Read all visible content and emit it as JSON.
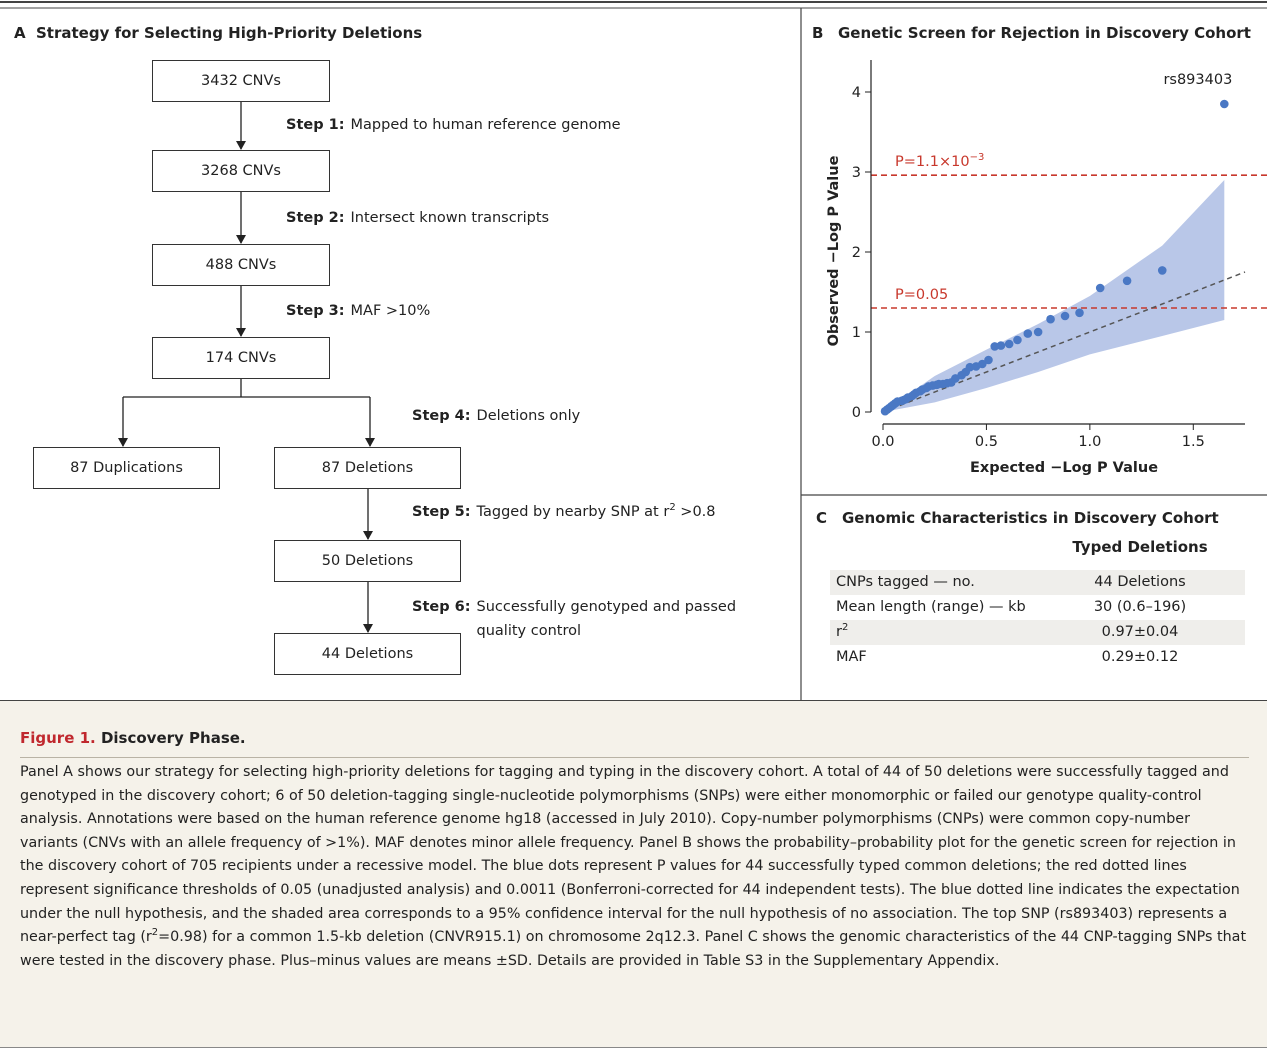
{
  "panel_a": {
    "label": "A",
    "title": "Strategy for Selecting High-Priority Deletions",
    "nodes": [
      "3432 CNVs",
      "3268 CNVs",
      "488 CNVs",
      "174 CNVs",
      "87 Duplications",
      "87 Deletions",
      "50 Deletions",
      "44 Deletions"
    ],
    "steps": [
      {
        "label": "Step 1:",
        "text": "Mapped to human reference genome"
      },
      {
        "label": "Step 2:",
        "text": "Intersect known transcripts"
      },
      {
        "label": "Step 3:",
        "text": "MAF >10%"
      },
      {
        "label": "Step 4:",
        "text": "Deletions only"
      },
      {
        "label": "Step 5:",
        "text": "Tagged by nearby SNP at r",
        "text_sup": "2",
        "text_after": " >0.8"
      },
      {
        "label": "Step 6:",
        "text": "Successfully genotyped and passed quality control"
      }
    ]
  },
  "chart_data": {
    "type": "scatter",
    "label": "B",
    "title": "Genetic Screen for Rejection in Discovery Cohort",
    "x_label": "Expected −Log P Value",
    "y_label": "Observed −Log P Value",
    "x": [
      1.65,
      1.35,
      1.18,
      1.05,
      0.95,
      0.88,
      0.81,
      0.75,
      0.7,
      0.65,
      0.61,
      0.57,
      0.54,
      0.51,
      0.48,
      0.45,
      0.42,
      0.4,
      0.38,
      0.35,
      0.33,
      0.31,
      0.29,
      0.27,
      0.26,
      0.24,
      0.22,
      0.21,
      0.19,
      0.18,
      0.16,
      0.15,
      0.14,
      0.12,
      0.11,
      0.1,
      0.09,
      0.07,
      0.06,
      0.05,
      0.04,
      0.03,
      0.02,
      0.01
    ],
    "values": [
      3.85,
      1.77,
      1.64,
      1.55,
      1.24,
      1.2,
      1.16,
      1.0,
      0.98,
      0.9,
      0.85,
      0.83,
      0.82,
      0.65,
      0.6,
      0.57,
      0.56,
      0.5,
      0.46,
      0.42,
      0.37,
      0.36,
      0.35,
      0.35,
      0.34,
      0.33,
      0.32,
      0.3,
      0.28,
      0.26,
      0.24,
      0.22,
      0.2,
      0.18,
      0.16,
      0.15,
      0.14,
      0.13,
      0.11,
      0.09,
      0.07,
      0.05,
      0.03,
      0.01
    ],
    "color": "#4a78c4",
    "xlim": [
      0,
      1.75
    ],
    "ylim": [
      0,
      4.4
    ],
    "xticks": [
      {
        "value": 0,
        "label": "0.0"
      },
      0.5,
      {
        "value": 1,
        "label": "1.0"
      },
      1.5
    ],
    "yticks": [
      0,
      1,
      2,
      3,
      4
    ],
    "band_x": [
      0,
      0.25,
      0.5,
      0.75,
      1.0,
      1.35,
      1.65
    ],
    "band_upper": [
      0,
      0.45,
      0.78,
      1.1,
      1.45,
      2.08,
      2.9
    ],
    "band_lower": [
      0,
      0.12,
      0.3,
      0.5,
      0.72,
      0.95,
      1.15
    ],
    "band_color": "#b9c7e8",
    "null_line": {
      "x": [
        0,
        1.75
      ],
      "y": [
        0,
        1.75
      ]
    },
    "threshold_color": "#c8382c",
    "thresholds": [
      {
        "value": 2.96,
        "label": "P=1.1×10",
        "label_sup": "−3"
      },
      {
        "value": 1.3,
        "label": "P=0.05"
      }
    ],
    "annotation": "rs893403"
  },
  "panel_c": {
    "label": "C",
    "title": "Genomic Characteristics in Discovery Cohort",
    "column_header": "Typed Deletions",
    "rows": [
      {
        "label": "CNPs tagged — no.",
        "value": "44 Deletions"
      },
      {
        "label": "Mean length (range) — kb",
        "value": "30 (0.6–196)"
      },
      {
        "label": "r",
        "label_sup": "2",
        "value": "0.97±0.04"
      },
      {
        "label": "MAF",
        "value": "0.29±0.12"
      }
    ]
  },
  "caption": {
    "figure_label": "Figure 1.",
    "title": "Discovery Phase.",
    "body": [
      {
        "text": "Panel A shows our strategy for selecting high-priority deletions for tagging and typing in the discovery cohort. A total of 44 of 50 deletions were successfully tagged and genotyped in the discovery cohort; 6 of 50 deletion-tagging single-nucleotide polymorphisms (SNPs) were either monomorphic or failed our genotype quality-control analysis. Annotations were based on the human reference genome hg18 (accessed in July 2010). Copy-number polymorphisms (CNPs) were common copy-number variants (CNVs with an allele frequency of >1%). MAF denotes minor allele frequency. Panel B shows the probability–probability plot for the genetic screen for rejection in the discovery cohort of 705 recipients under a recessive model. The blue dots represent P values for 44 successfully typed common deletions; the red dotted lines represent significance thresholds of 0.05 (unadjusted analysis) and 0.0011 (Bonferroni-corrected for 44 independent tests). The blue dotted line indicates the expectation under the null hypothesis, and the shaded area corresponds to a 95% confidence interval for the null hypothesis of no association. The top SNP (rs893403) represents a near-perfect tag (r"
      },
      {
        "sup": "2"
      },
      {
        "text": "=0.98) for a common 1.5-kb deletion (CNVR915.1) on chromosome 2q12.3. Panel C shows the genomic characteristics of the 44 CNP-tagging SNPs that were tested in the discovery phase. Plus–minus values are means ±SD. Details are provided in Table S3 in the Supplementary Appendix."
      }
    ]
  }
}
